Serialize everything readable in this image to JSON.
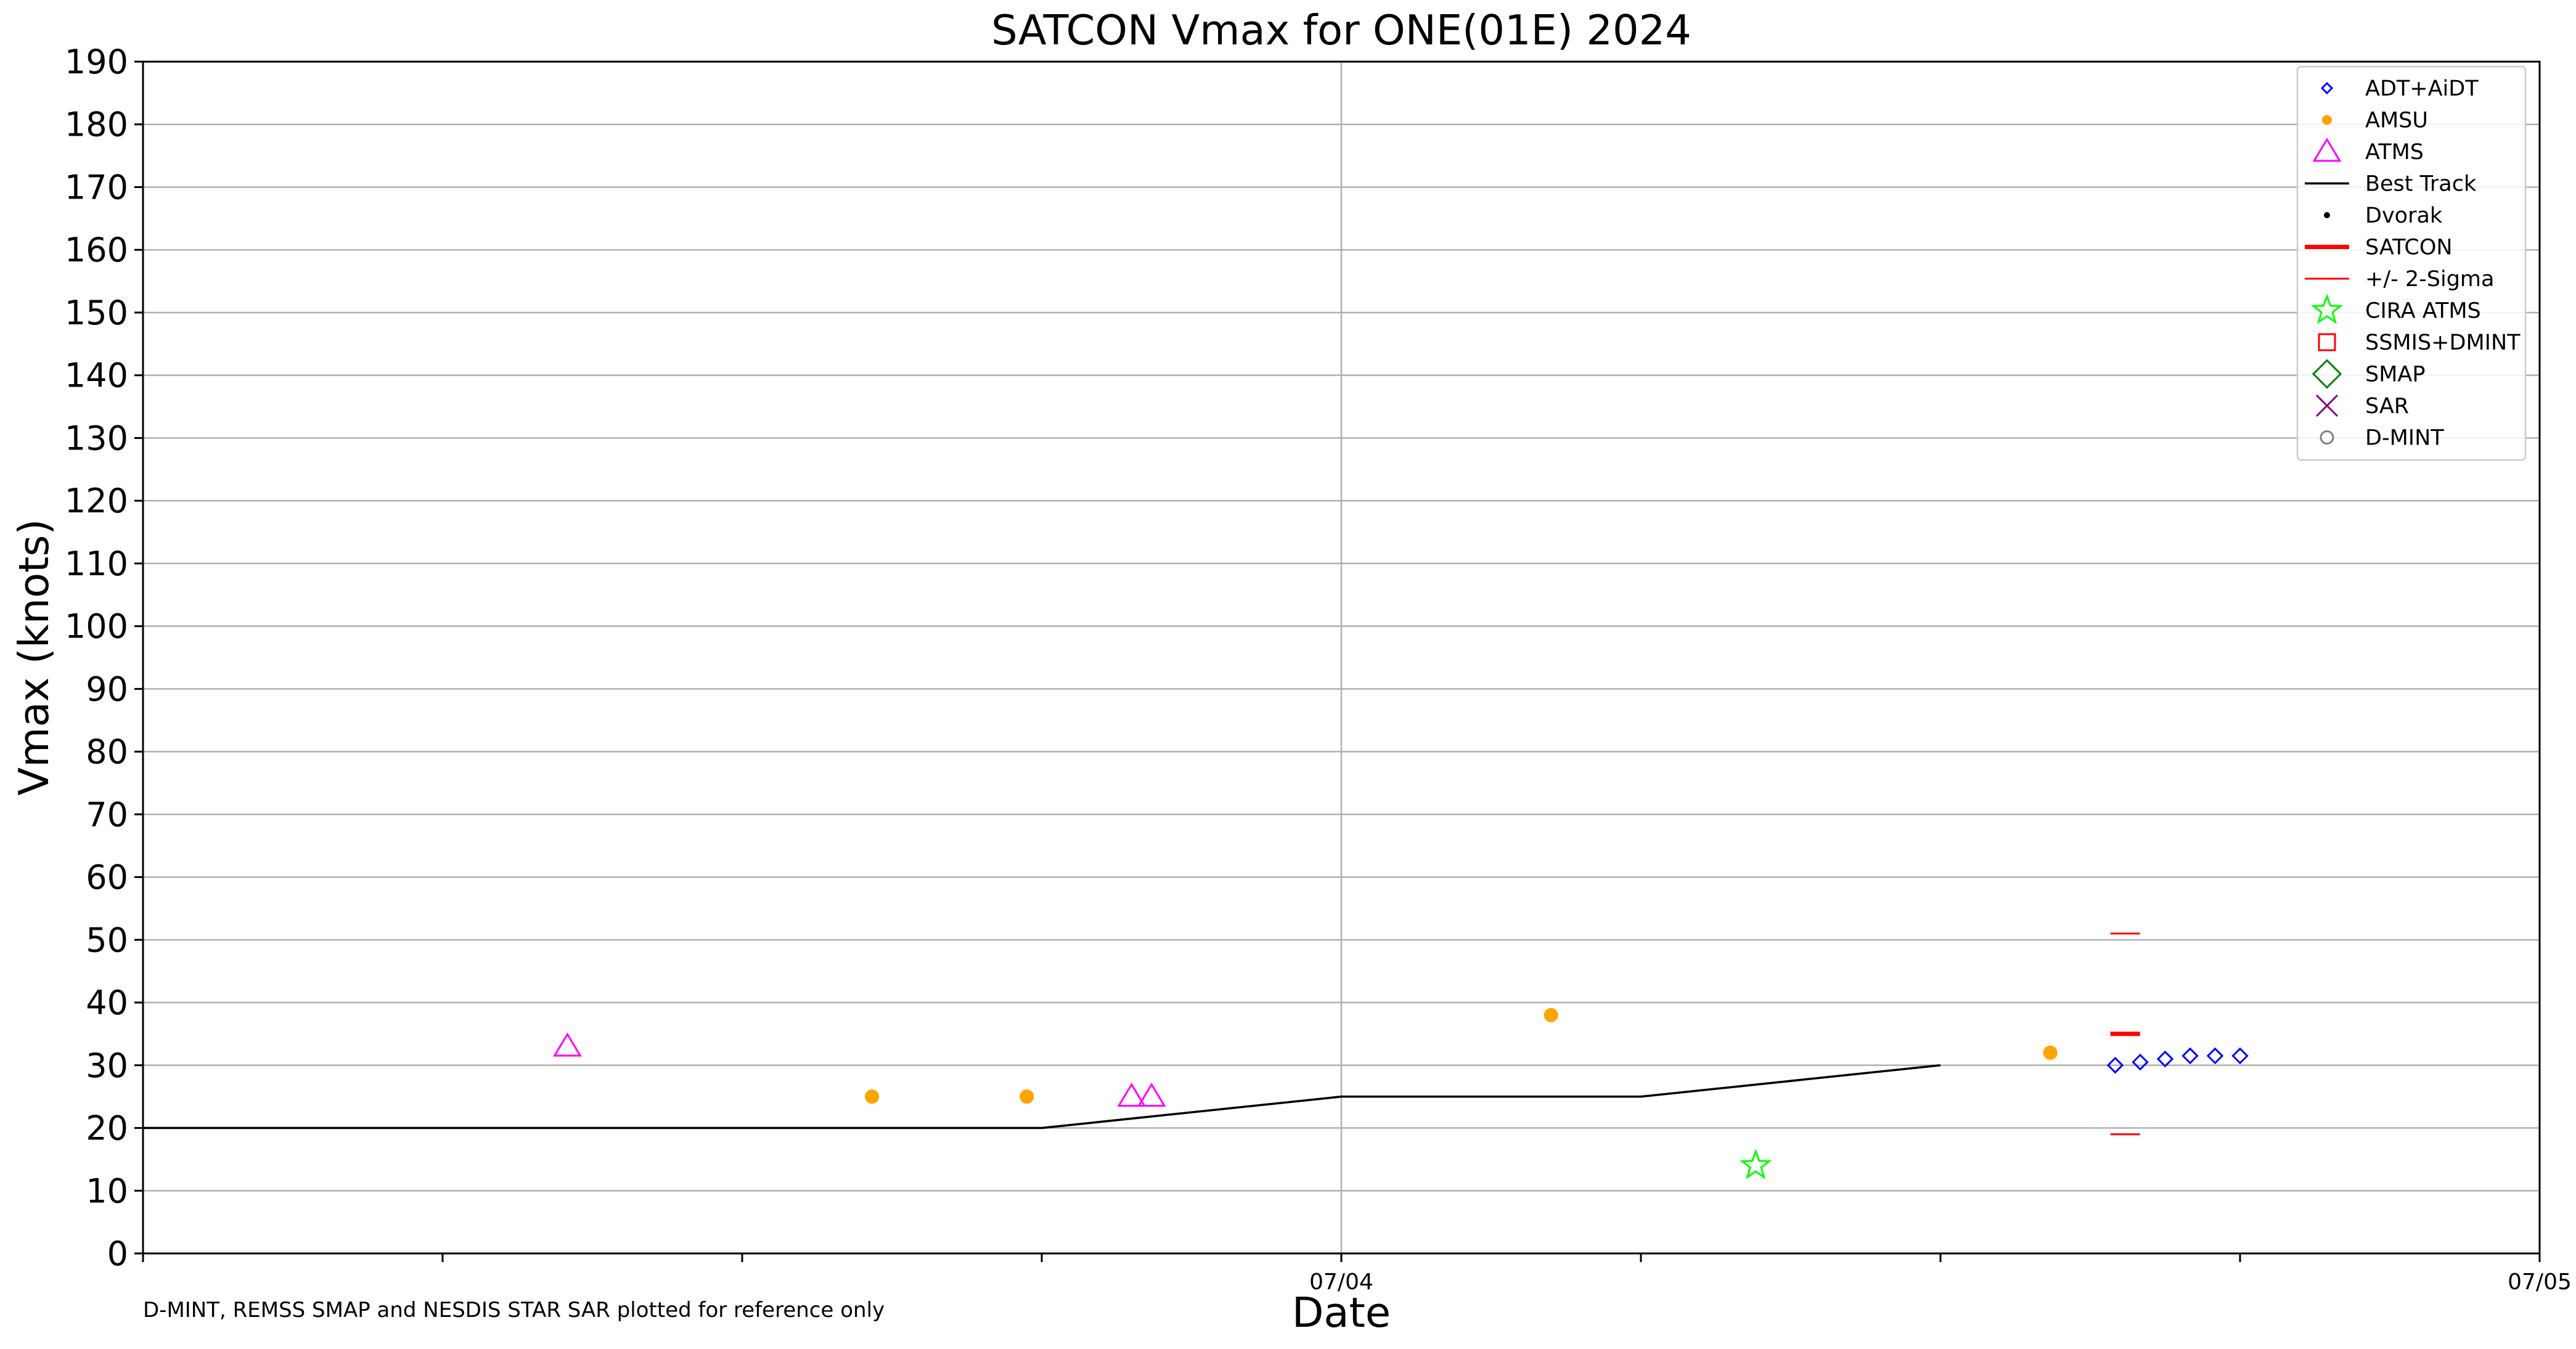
{
  "chart_data": {
    "type": "scatter",
    "title": "SATCON Vmax for ONE(01E) 2024",
    "xlabel": "Date",
    "ylabel": "Vmax (knots)",
    "x_unit": "hours since 07/03 00Z (axis spans 07/03 00Z to 07/05 00Z)",
    "xlim": [
      0,
      48
    ],
    "ylim": [
      0,
      190
    ],
    "y_ticks": [
      0,
      10,
      20,
      30,
      40,
      50,
      60,
      70,
      80,
      90,
      100,
      110,
      120,
      130,
      140,
      150,
      160,
      170,
      180,
      190
    ],
    "x_ticks": [
      {
        "x": 0,
        "label": ""
      },
      {
        "x": 6,
        "label": ""
      },
      {
        "x": 12,
        "label": ""
      },
      {
        "x": 18,
        "label": ""
      },
      {
        "x": 24,
        "label": "07/04"
      },
      {
        "x": 30,
        "label": ""
      },
      {
        "x": 36,
        "label": ""
      },
      {
        "x": 42,
        "label": ""
      },
      {
        "x": 48,
        "label": "07/05"
      }
    ],
    "grid": true,
    "legend_position": "top-right",
    "series": [
      {
        "name": "ADT+AiDT",
        "kind": "marker",
        "marker": "diamond",
        "color": "#0000ff",
        "points": [
          [
            39.5,
            30
          ],
          [
            40.0,
            30.5
          ],
          [
            40.5,
            31
          ],
          [
            41.0,
            31.5
          ],
          [
            41.5,
            31.5
          ],
          [
            42.0,
            31.5
          ]
        ]
      },
      {
        "name": "AMSU",
        "kind": "marker",
        "marker": "dot",
        "color": "#ffa500",
        "points": [
          [
            14.6,
            25
          ],
          [
            17.7,
            25
          ],
          [
            28.2,
            38
          ],
          [
            38.2,
            32
          ]
        ]
      },
      {
        "name": "ATMS",
        "kind": "marker",
        "marker": "triangle",
        "color": "#ff00ff",
        "points": [
          [
            8.5,
            33
          ],
          [
            19.8,
            25
          ],
          [
            20.2,
            25
          ]
        ]
      },
      {
        "name": "Best Track",
        "kind": "line",
        "color": "#000000",
        "points": [
          [
            0,
            20
          ],
          [
            6,
            20
          ],
          [
            12,
            20
          ],
          [
            18,
            20
          ],
          [
            24,
            25
          ],
          [
            30,
            25
          ],
          [
            36,
            30
          ]
        ]
      },
      {
        "name": "Dvorak",
        "kind": "marker",
        "marker": "smalldot",
        "color": "#000000",
        "points": []
      },
      {
        "name": "SATCON",
        "kind": "marker",
        "marker": "thickdash",
        "color": "#ff0000",
        "points": [
          [
            39.7,
            35
          ]
        ]
      },
      {
        "name": "+/- 2-Sigma",
        "kind": "marker",
        "marker": "thindash",
        "color": "#ff0000",
        "points": [
          [
            39.7,
            51
          ],
          [
            39.7,
            19
          ]
        ]
      },
      {
        "name": "CIRA ATMS",
        "kind": "marker",
        "marker": "star",
        "color": "#00ff00",
        "points": [
          [
            32.3,
            14
          ]
        ]
      },
      {
        "name": "SSMIS+DMINT",
        "kind": "marker",
        "marker": "square",
        "color": "#ff0000",
        "points": []
      },
      {
        "name": "SMAP",
        "kind": "marker",
        "marker": "bigdiamond",
        "color": "#008000",
        "points": []
      },
      {
        "name": "SAR",
        "kind": "marker",
        "marker": "x",
        "color": "#800080",
        "points": []
      },
      {
        "name": "D-MINT",
        "kind": "marker",
        "marker": "circle",
        "color": "#808080",
        "points": []
      }
    ]
  },
  "footnote": "D-MINT, REMSS SMAP and NESDIS STAR SAR plotted for reference only"
}
